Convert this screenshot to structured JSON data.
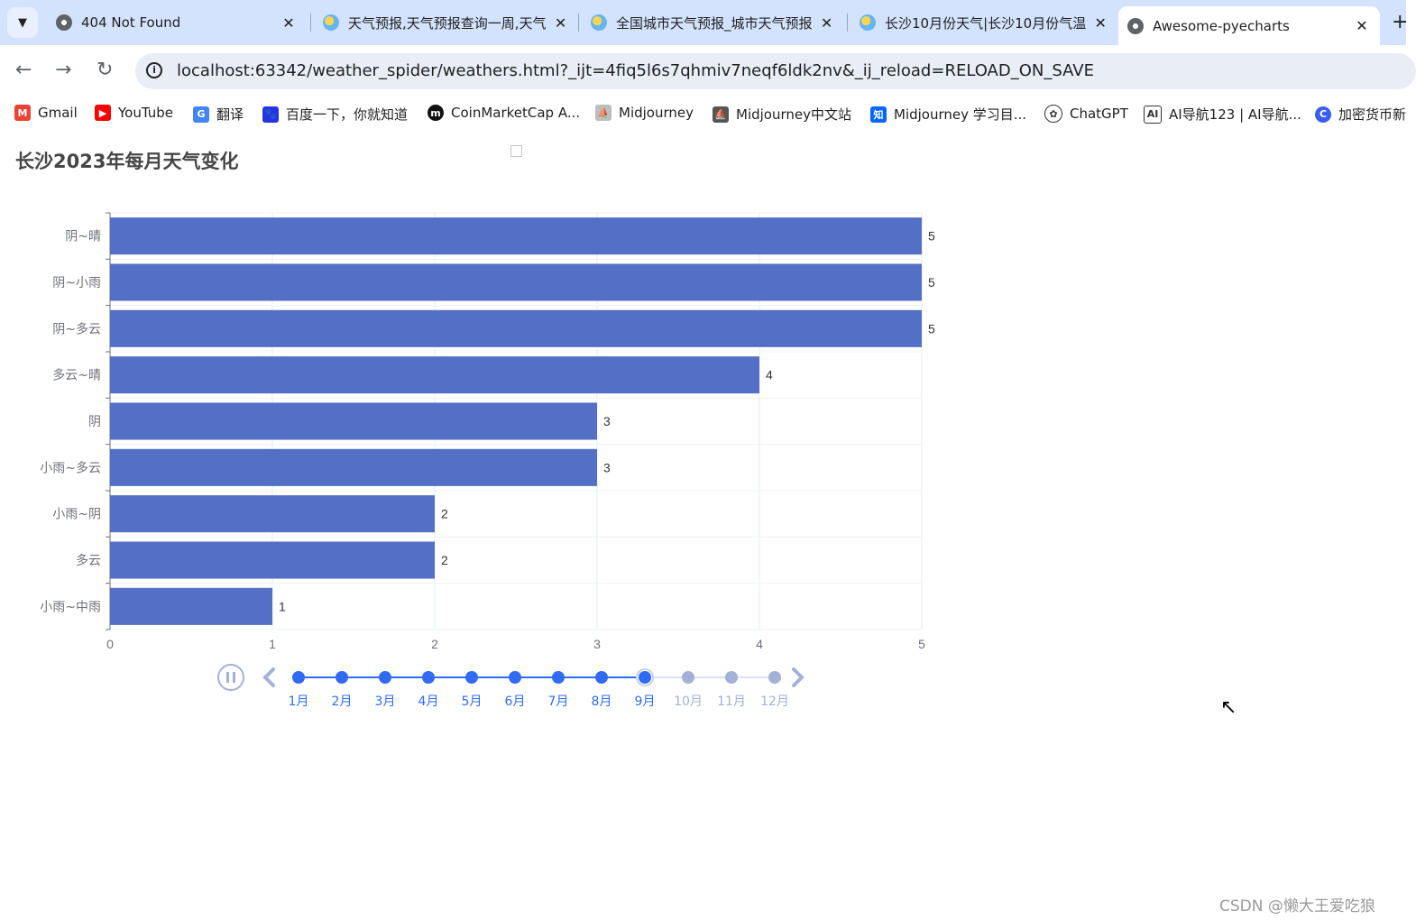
{
  "browser": {
    "tabs": [
      {
        "title": "404 Not Found",
        "icon": "globe-icon",
        "active": false
      },
      {
        "title": "天气预报,天气预报查询一周,天气",
        "icon": "weather-site-icon",
        "active": false
      },
      {
        "title": "全国城市天气预报_城市天气预报",
        "icon": "weather-site-icon",
        "active": false
      },
      {
        "title": "长沙10月份天气|长沙10月份气温",
        "icon": "weather-site-icon",
        "active": false
      },
      {
        "title": "Awesome-pyecharts",
        "icon": "globe-icon",
        "active": true
      }
    ],
    "close_glyph": "✕",
    "new_tab_glyph": "+",
    "url": "localhost:63342/weather_spider/weathers.html?_ijt=4fiq5l6s7qhmiv7neqf6ldk2nv&_ij_reload=RELOAD_ON_SAVE",
    "bookmarks": [
      {
        "label": "Gmail",
        "icon": "gmail-icon",
        "color": "#ea4335"
      },
      {
        "label": "YouTube",
        "icon": "youtube-icon",
        "color": "#ff0000"
      },
      {
        "label": "翻译",
        "icon": "translate-icon",
        "color": "#4285f4"
      },
      {
        "label": "百度一下，你就知道",
        "icon": "baidu-icon",
        "color": "#2932e1"
      },
      {
        "label": "CoinMarketCap A...",
        "icon": "coinmarketcap-icon",
        "color": "#111111"
      },
      {
        "label": "Midjourney",
        "icon": "midjourney-icon",
        "color": "#888888"
      },
      {
        "label": "Midjourney中文站",
        "icon": "midjourney-cn-icon",
        "color": "#333333"
      },
      {
        "label": "Midjourney 学习目...",
        "icon": "zhihu-icon",
        "color": "#0066ff"
      },
      {
        "label": "ChatGPT",
        "icon": "chatgpt-icon",
        "color": "#333333"
      },
      {
        "label": "AI导航123 | AI导航...",
        "icon": "ai-nav-icon",
        "color": "#333333"
      },
      {
        "label": "加密货币新",
        "icon": "crypto-icon",
        "color": "#3a5df0"
      }
    ]
  },
  "page": {
    "title": "长沙2023年每月天气变化",
    "watermark": "CSDN @懒大王爱吃狼"
  },
  "chart_data": {
    "type": "bar",
    "orientation": "horizontal",
    "title": "长沙2023年每月天气变化",
    "categories": [
      "阴~晴",
      "阴~小雨",
      "阴~多云",
      "多云~晴",
      "阴",
      "小雨~多云",
      "小雨~阴",
      "多云",
      "小雨~中雨"
    ],
    "values": [
      5,
      5,
      5,
      4,
      3,
      3,
      2,
      2,
      1
    ],
    "xlim": [
      0,
      5
    ],
    "x_ticks": [
      "0",
      "1",
      "2",
      "3",
      "4",
      "5"
    ],
    "grid": true,
    "bar_color": "#5470c6",
    "data_labels": true
  },
  "timeline": {
    "months": [
      "1月",
      "2月",
      "3月",
      "4月",
      "5月",
      "6月",
      "7月",
      "8月",
      "9月",
      "10月",
      "11月",
      "12月"
    ],
    "current_index": 8,
    "playing": true,
    "active_color": "#316bf3",
    "inactive_color": "#a4b1d7"
  }
}
